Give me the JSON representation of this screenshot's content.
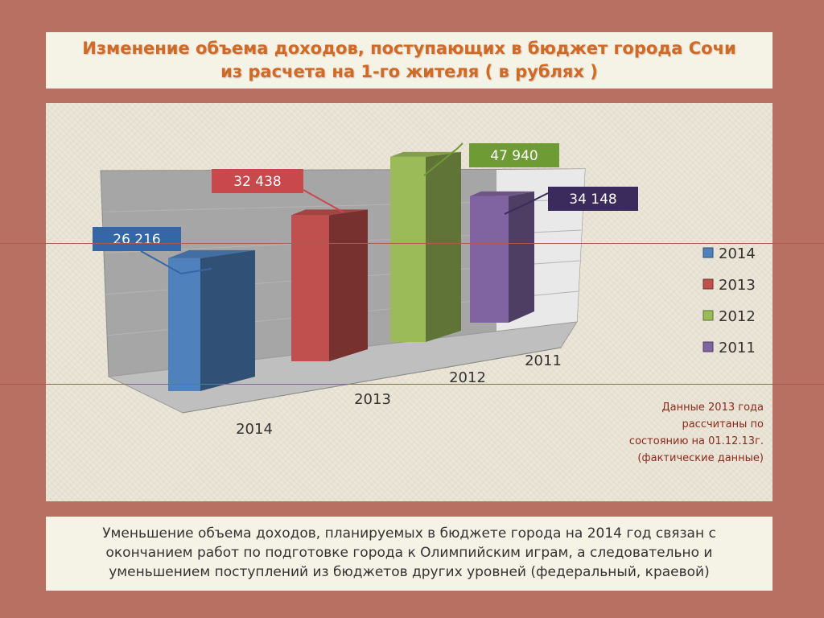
{
  "title": {
    "line1": "Изменение объема доходов, поступающих в бюджет города Сочи",
    "line2": "из расчета  на 1-го жителя   ( в рублях )"
  },
  "chart_data": {
    "type": "bar",
    "categories": [
      "2014",
      "2013",
      "2012",
      "2011"
    ],
    "values": [
      26216,
      32438,
      47940,
      34148
    ],
    "data_labels": [
      "26 216",
      "32 438",
      "47 940",
      "34 148"
    ],
    "series_colors": [
      "#4f81bd",
      "#c0504d",
      "#9bbb59",
      "#8064a2"
    ],
    "label_box_colors": [
      "#3566a7",
      "#c8484c",
      "#6e9b33",
      "#3b2b5c"
    ],
    "legend": [
      "2014",
      "2013",
      "2012",
      "2011"
    ],
    "legend_position": "right",
    "ylim": [
      0,
      60000
    ],
    "grid": true,
    "three_d": true
  },
  "note": {
    "lines": [
      "Данные 2013 года",
      "рассчитаны  по",
      "состоянию на 01.12.13г.",
      "(фактические данные)"
    ]
  },
  "footer": {
    "lines": [
      "Уменьшение объема доходов, планируемых в бюджете города на 2014 год связан с",
      "окончанием работ по подготовке города к Олимпийским играм, а следовательно и",
      "уменьшением  поступлений из бюджетов других уровней (федеральный, краевой)"
    ]
  }
}
